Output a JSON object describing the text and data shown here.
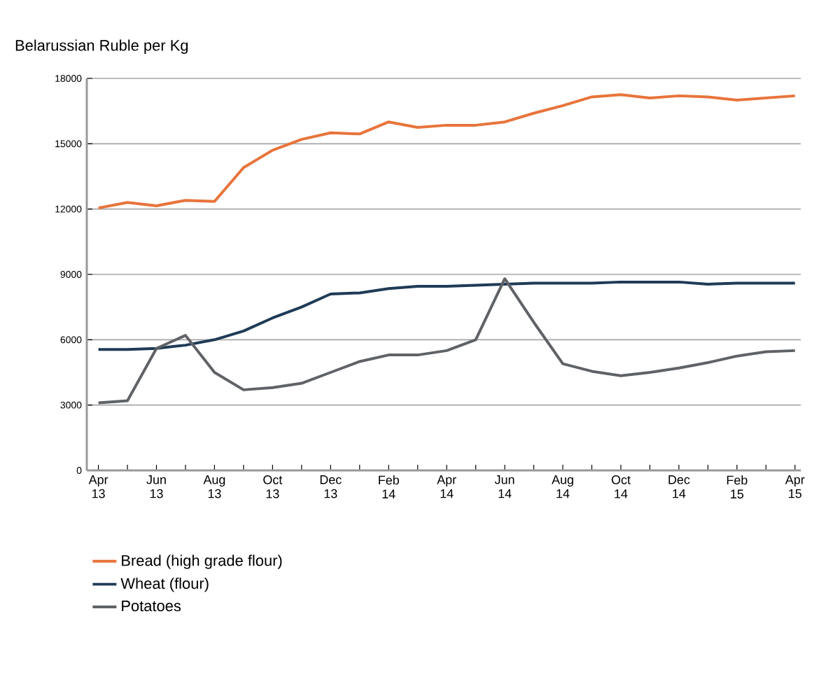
{
  "chart_data": {
    "type": "line",
    "ylabel": "Belarussian Ruble per Kg",
    "categories": [
      "Apr 13",
      null,
      "Jun 13",
      null,
      "Aug 13",
      null,
      "Oct 13",
      null,
      "Dec 13",
      null,
      "Feb 14",
      null,
      "Apr 14",
      null,
      "Jun 14",
      null,
      "Aug 14",
      null,
      "Oct 14",
      null,
      "Dec 14",
      null,
      "Feb 15",
      null,
      "Apr 15"
    ],
    "series": [
      {
        "name": "Bread (high grade flour)",
        "color": "#e8743b",
        "values": [
          12050,
          12300,
          12150,
          12400,
          12350,
          13900,
          14700,
          15200,
          15500,
          15450,
          16000,
          15750,
          15850,
          15850,
          16000,
          16400,
          16750,
          17150,
          17250,
          17100,
          17200,
          17150,
          17000,
          17100,
          17200
        ]
      },
      {
        "name": "Wheat (flour)",
        "color": "#1f3b57",
        "values": [
          5550,
          5550,
          5600,
          5750,
          6000,
          6400,
          7000,
          7500,
          8100,
          8150,
          8350,
          8450,
          8450,
          8500,
          8550,
          8600,
          8600,
          8600,
          8650,
          8650,
          8650,
          8550,
          8600,
          8600,
          8600
        ]
      },
      {
        "name": "Potatoes",
        "color": "#5f6266",
        "values": [
          3100,
          3200,
          5600,
          6200,
          4500,
          3700,
          3800,
          4000,
          4500,
          5000,
          5300,
          5300,
          5500,
          6000,
          8800,
          6800,
          4900,
          4550,
          4350,
          4500,
          4700,
          4950,
          5250,
          5450,
          5500
        ]
      }
    ],
    "ylim": [
      0,
      18000
    ],
    "yticks": [
      0,
      3000,
      6000,
      9000,
      12000,
      15000,
      18000
    ],
    "grid": "y",
    "legend": "bottom left",
    "marker": "none",
    "line_style": "solid"
  }
}
